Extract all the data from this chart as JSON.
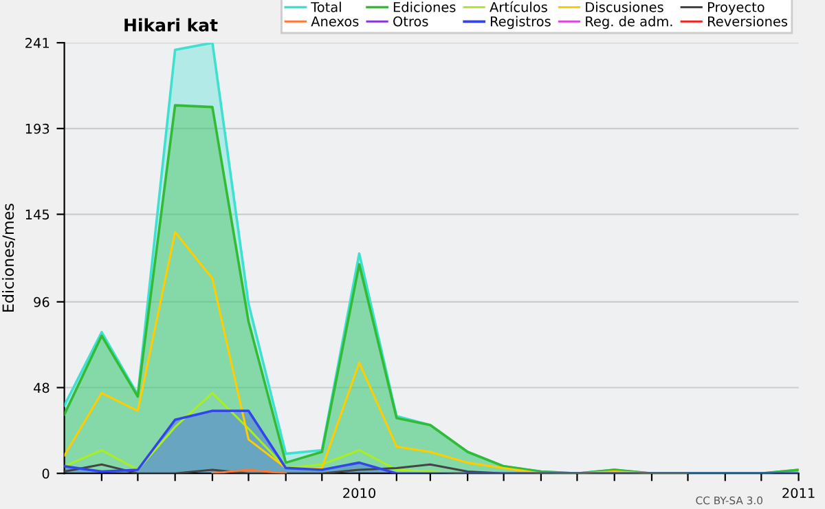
{
  "chart_data": {
    "type": "line",
    "title": "Hikari kat",
    "ylabel": "Ediciones/mes",
    "x": [
      "2009-05",
      "2009-06",
      "2009-07",
      "2009-08",
      "2009-09",
      "2009-10",
      "2009-11",
      "2009-12",
      "2010-01",
      "2010-02",
      "2010-03",
      "2010-04",
      "2010-05",
      "2010-06",
      "2010-07",
      "2010-08",
      "2010-09",
      "2010-10",
      "2010-11",
      "2010-12",
      "2011-01"
    ],
    "series": [
      {
        "name": "Total",
        "type": "area",
        "color": "#40e0d0",
        "values": [
          38,
          79,
          44,
          237,
          241,
          95,
          11,
          13,
          123,
          32,
          27,
          12,
          4,
          1,
          0,
          2,
          0,
          0,
          0,
          0,
          2
        ]
      },
      {
        "name": "Ediciones",
        "type": "area",
        "color": "#33bb33",
        "values": [
          33,
          77,
          43,
          206,
          205,
          85,
          6,
          12,
          117,
          31,
          27,
          12,
          4,
          1,
          0,
          2,
          0,
          0,
          0,
          0,
          2
        ]
      },
      {
        "name": "Artículos",
        "color": "#aaee22",
        "values": [
          4,
          13,
          2,
          26,
          45,
          25,
          3,
          5,
          13,
          2,
          1,
          0,
          0,
          0,
          0,
          0,
          0,
          0,
          null,
          null,
          null
        ]
      },
      {
        "name": "Discusiones",
        "color": "#ffcc00",
        "values": [
          10,
          45,
          35,
          135,
          109,
          19,
          3,
          3,
          62,
          15,
          12,
          6,
          3,
          0,
          0,
          1,
          0,
          0,
          null,
          null,
          null
        ]
      },
      {
        "name": "Proyecto",
        "color": "#444444",
        "values": [
          1,
          5,
          0,
          0,
          2,
          0,
          0,
          0,
          2,
          3,
          5,
          1,
          0,
          0,
          0,
          0,
          0,
          0,
          0,
          0,
          0
        ]
      },
      {
        "name": "Anexos",
        "color": "#ff7733",
        "values": [
          null,
          null,
          null,
          null,
          0,
          2,
          0,
          null,
          null,
          null,
          null,
          null,
          null,
          null,
          null,
          null,
          null,
          null,
          null,
          null,
          null
        ]
      },
      {
        "name": "Otros",
        "color": "#8833dd",
        "values": [
          null,
          null,
          null,
          null,
          null,
          null,
          null,
          null,
          null,
          null,
          null,
          null,
          null,
          null,
          null,
          null,
          null,
          null,
          null,
          null,
          null
        ]
      },
      {
        "name": "Registros",
        "type": "area",
        "color": "#3344ee",
        "values": [
          4,
          1,
          2,
          30,
          35,
          35,
          3,
          2,
          6,
          0,
          0,
          0,
          0,
          0,
          0,
          0,
          0,
          0,
          0,
          0,
          0
        ]
      },
      {
        "name": "Reg. de adm.",
        "color": "#dd44dd",
        "values": [
          null,
          null,
          null,
          null,
          null,
          null,
          null,
          null,
          null,
          null,
          null,
          null,
          null,
          null,
          null,
          null,
          null,
          null,
          null,
          null,
          null
        ]
      },
      {
        "name": "Reversiones",
        "color": "#ee2222",
        "values": [
          null,
          null,
          null,
          null,
          null,
          null,
          null,
          null,
          null,
          null,
          null,
          null,
          null,
          null,
          null,
          null,
          null,
          null,
          null,
          null,
          null
        ]
      }
    ],
    "xlim": [
      "2009-05",
      "2011-01"
    ],
    "xticks": [
      {
        "value": "2009-06",
        "label": null
      },
      {
        "value": "2009-07",
        "label": null
      },
      {
        "value": "2009-08",
        "label": null
      },
      {
        "value": "2009-09",
        "label": null
      },
      {
        "value": "2009-10",
        "label": null
      },
      {
        "value": "2009-11",
        "label": null
      },
      {
        "value": "2009-12",
        "label": null
      },
      {
        "value": "2010-01",
        "label": "2010"
      },
      {
        "value": "2010-02",
        "label": null
      },
      {
        "value": "2010-03",
        "label": null
      },
      {
        "value": "2010-04",
        "label": null
      },
      {
        "value": "2010-05",
        "label": null
      },
      {
        "value": "2010-06",
        "label": null
      },
      {
        "value": "2010-07",
        "label": null
      },
      {
        "value": "2010-08",
        "label": null
      },
      {
        "value": "2010-09",
        "label": null
      },
      {
        "value": "2010-10",
        "label": null
      },
      {
        "value": "2010-11",
        "label": null
      },
      {
        "value": "2010-12",
        "label": null
      },
      {
        "value": "2011-01",
        "label": "2011"
      }
    ],
    "ylim": [
      0,
      241
    ],
    "yticks": [
      0,
      48,
      96,
      145,
      193,
      241
    ],
    "grid": "y",
    "legend": "top right",
    "annotations": [
      "CC BY-SA 3.0"
    ]
  }
}
